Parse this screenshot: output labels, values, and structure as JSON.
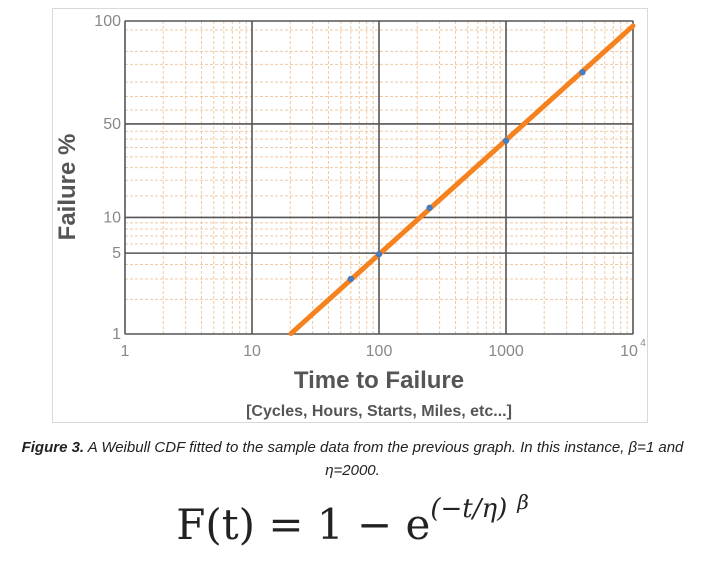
{
  "chart_data": {
    "type": "line",
    "xscale": "log",
    "yscale": "weibull",
    "xlim": [
      1,
      10000
    ],
    "ylim": [
      1,
      100
    ],
    "xlabel": "Time to Failure",
    "xlabel_sub": "[Cycles, Hours, Starts, Miles, etc...]",
    "ylabel": "Failure %",
    "x_ticks": [
      {
        "value": 1,
        "label": "1"
      },
      {
        "value": 10,
        "label": "10"
      },
      {
        "value": 100,
        "label": "100"
      },
      {
        "value": 1000,
        "label": "1000"
      },
      {
        "value": 10000,
        "label": "10",
        "sup": "4"
      }
    ],
    "y_ticks": [
      {
        "value": 1,
        "label": "1"
      },
      {
        "value": 5,
        "label": "5"
      },
      {
        "value": 10,
        "label": "10"
      },
      {
        "value": 50,
        "label": "50"
      },
      {
        "value": 100,
        "label": "100"
      }
    ],
    "curve": {
      "beta": 1,
      "eta": 2000,
      "color": "#f5821f"
    },
    "points": [
      {
        "x": 60,
        "y": 3
      },
      {
        "x": 100,
        "y": 4.9
      },
      {
        "x": 250,
        "y": 12
      },
      {
        "x": 1000,
        "y": 39
      },
      {
        "x": 4000,
        "y": 86
      }
    ],
    "point_color": "#4a7bbd",
    "grid": true,
    "colors": {
      "major_grid": "#555555",
      "minor_grid": "#f0c9a3",
      "axis_text": "#888888",
      "label_text": "#555555"
    }
  },
  "caption": {
    "lead": "Figure 3.",
    "text": " A Weibull CDF fitted to the sample data from the previous graph. In this instance, β=1 and",
    "line2": "η=2000."
  },
  "formula": {
    "lhs": "F(t) = 1 − e",
    "exponent": "(−t/η)",
    "power": "β"
  }
}
